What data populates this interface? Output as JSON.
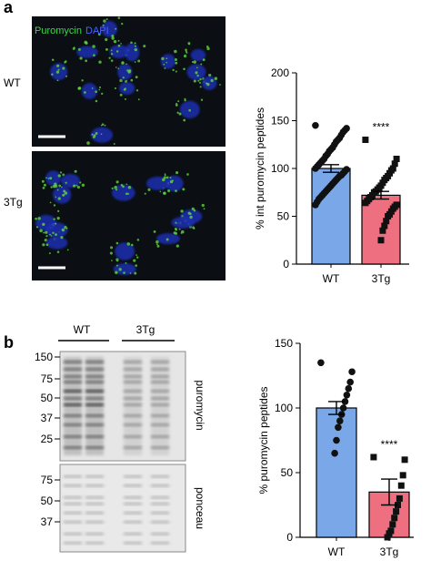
{
  "panel_labels": [
    "a",
    "b"
  ],
  "micrograph": {
    "stain_labels": [
      "Puromycin",
      "DAPI"
    ],
    "row_labels": [
      "WT",
      "3Tg"
    ]
  },
  "blot": {
    "group_labels": [
      "WT",
      "3Tg"
    ],
    "puromycin_markers": [
      "150",
      "75",
      "50",
      "37",
      "25"
    ],
    "ponceau_markers": [
      "75",
      "50",
      "37"
    ],
    "strip_labels": [
      "puromycin",
      "ponceau"
    ]
  },
  "chart_data": [
    {
      "type": "bar",
      "y_label": "% int  puromycin peptides",
      "categories": [
        "WT",
        "3Tg"
      ],
      "values": [
        100,
        72
      ],
      "errors": [
        4,
        4
      ],
      "colors": [
        "#7aa7e8",
        "#ee6f80"
      ],
      "markers": [
        "circle",
        "square"
      ],
      "points": [
        [
          145,
          142,
          140,
          138,
          135,
          132,
          130,
          128,
          125,
          122,
          120,
          118,
          115,
          113,
          110,
          108,
          106,
          104,
          102,
          100,
          99,
          97,
          95,
          93,
          92,
          90,
          88,
          86,
          84,
          82,
          80,
          78,
          76,
          74,
          72,
          70,
          68,
          65,
          62
        ],
        [
          130,
          110,
          105,
          100,
          98,
          95,
          92,
          90,
          88,
          85,
          82,
          80,
          78,
          76,
          75,
          72,
          70,
          68,
          66,
          64,
          62,
          60,
          58,
          55,
          52,
          50,
          45,
          40,
          35,
          25
        ]
      ],
      "significance": "****",
      "ylim": [
        0,
        200
      ],
      "yticks": [
        0,
        50,
        100,
        150,
        200
      ],
      "grid": false
    },
    {
      "type": "bar",
      "y_label": "% puromycin peptides",
      "categories": [
        "WT",
        "3Tg"
      ],
      "values": [
        100,
        35
      ],
      "errors": [
        5,
        10
      ],
      "colors": [
        "#7aa7e8",
        "#ee6f80"
      ],
      "markers": [
        "circle",
        "square"
      ],
      "points": [
        [
          135,
          128,
          120,
          115,
          110,
          105,
          100,
          95,
          90,
          85,
          75,
          65
        ],
        [
          62,
          60,
          48,
          40,
          30,
          25,
          20,
          15,
          10,
          5,
          3,
          0
        ]
      ],
      "significance": "****",
      "ylim": [
        0,
        150
      ],
      "yticks": [
        0,
        50,
        100,
        150
      ],
      "grid": false
    }
  ]
}
